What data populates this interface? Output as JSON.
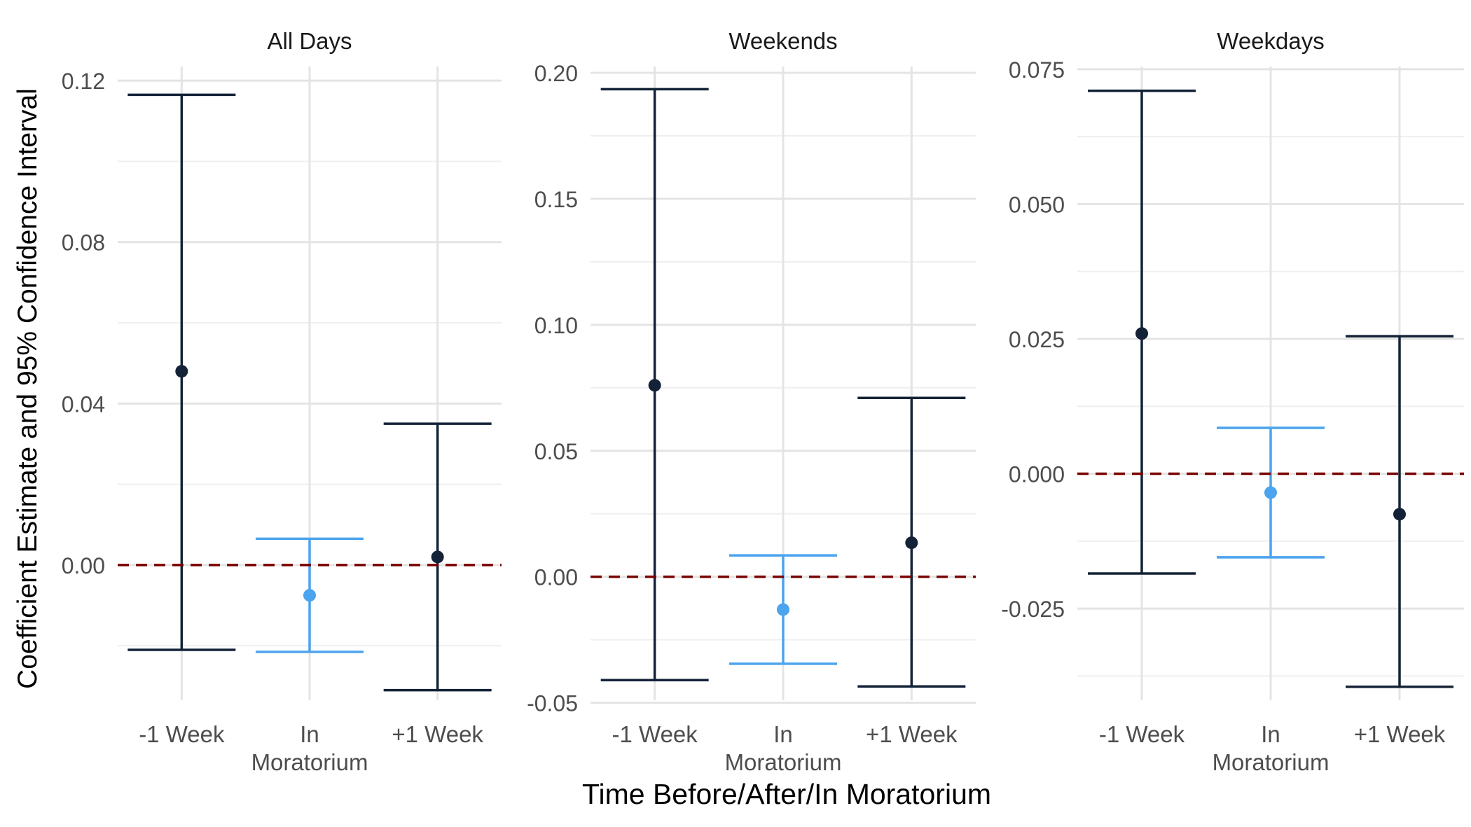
{
  "figure": {
    "ylabel": "Coefficient Estimate and 95% Confidence Interval",
    "xlabel": "Time Before/After/In Moratorium"
  },
  "colors": {
    "dark_series": "#132237",
    "light_series": "#4ca3ee",
    "reference_line": "#7a0000",
    "grid_major": "#e4e4e4",
    "grid_minor": "#efefef",
    "tick_text": "#4d4d4d",
    "axis_title_text": "#000000"
  },
  "chart_data": [
    {
      "type": "errorbar",
      "title": "All Days",
      "categories": [
        "-1 Week",
        "In\nMoratorium",
        "+1 Week"
      ],
      "estimate": [
        0.048,
        -0.0075,
        0.002
      ],
      "lower": [
        -0.021,
        -0.0215,
        -0.031
      ],
      "upper": [
        0.1165,
        0.0065,
        0.035
      ],
      "highlight": [
        false,
        true,
        false
      ],
      "yticks": [
        0.0,
        0.04,
        0.08,
        0.12
      ],
      "ytick_labels": [
        "0.00",
        "0.04",
        "0.08",
        "0.12"
      ],
      "ylim": [
        -0.0335,
        0.1235
      ],
      "reference_line": 0
    },
    {
      "type": "errorbar",
      "title": "Weekends",
      "categories": [
        "-1 Week",
        "In\nMoratorium",
        "+1 Week"
      ],
      "estimate": [
        0.076,
        -0.013,
        0.0135
      ],
      "lower": [
        -0.041,
        -0.0345,
        -0.0435
      ],
      "upper": [
        0.1935,
        0.0085,
        0.071
      ],
      "highlight": [
        false,
        true,
        false
      ],
      "yticks": [
        -0.05,
        0.0,
        0.05,
        0.1,
        0.15,
        0.2
      ],
      "ytick_labels": [
        "-0.05",
        "0.00",
        "0.05",
        "0.10",
        "0.15",
        "0.20"
      ],
      "ylim": [
        -0.049,
        0.2025
      ],
      "reference_line": 0
    },
    {
      "type": "errorbar",
      "title": "Weekdays",
      "categories": [
        "-1 Week",
        "In\nMoratorium",
        "+1 Week"
      ],
      "estimate": [
        0.026,
        -0.0035,
        -0.0075
      ],
      "lower": [
        -0.0185,
        -0.0155,
        -0.0395
      ],
      "upper": [
        0.071,
        0.0085,
        0.0255
      ],
      "highlight": [
        false,
        true,
        false
      ],
      "yticks": [
        -0.025,
        0.0,
        0.025,
        0.05,
        0.075
      ],
      "ytick_labels": [
        "-0.025",
        "0.000",
        "0.025",
        "0.050",
        "0.075"
      ],
      "ylim": [
        -0.042,
        0.0755
      ],
      "reference_line": 0
    }
  ]
}
